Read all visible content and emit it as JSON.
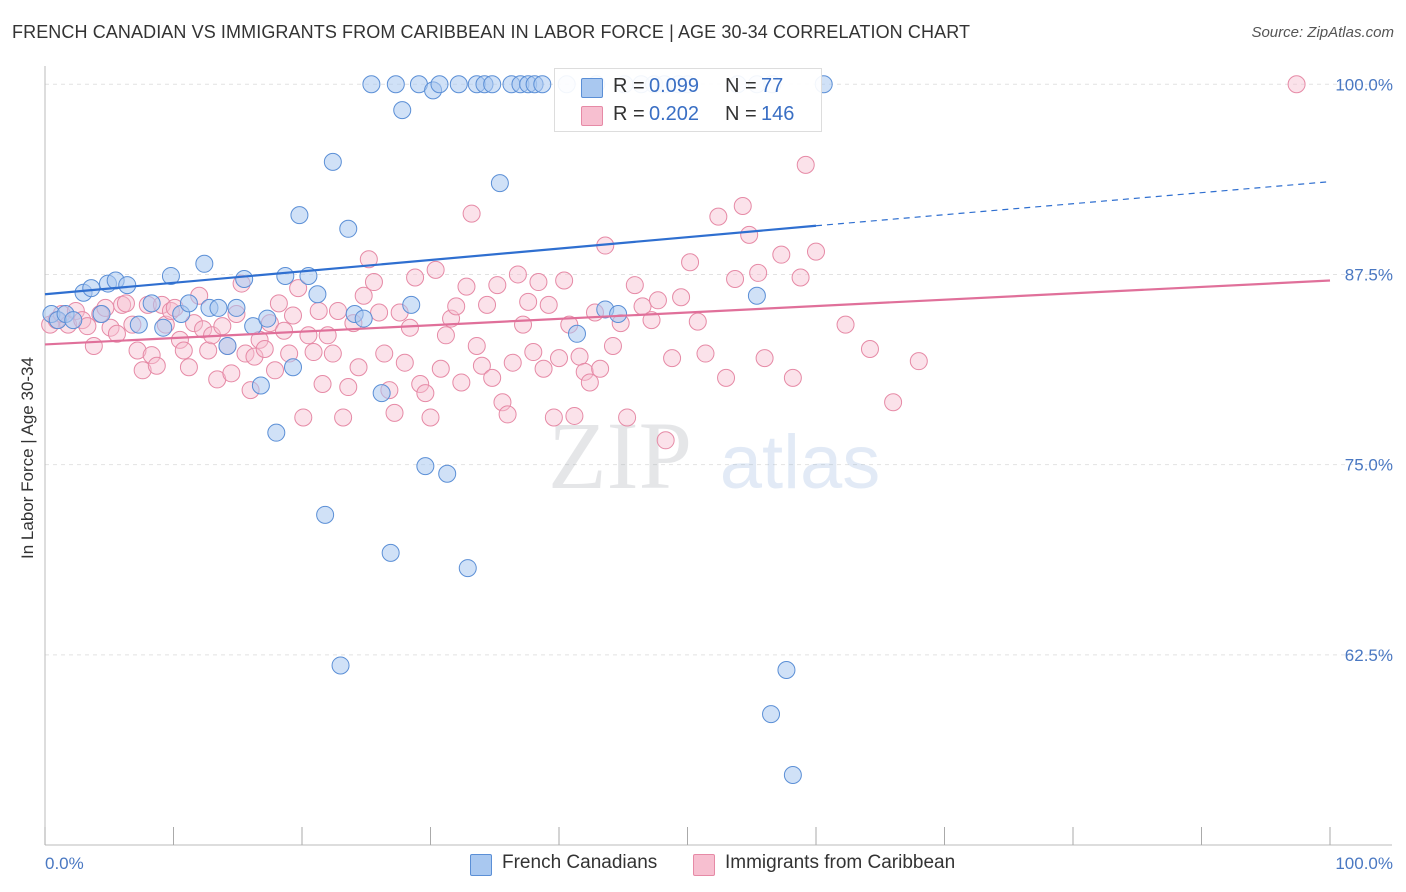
{
  "title": "FRENCH CANADIAN VS IMMIGRANTS FROM CARIBBEAN IN LABOR FORCE | AGE 30-34 CORRELATION CHART",
  "source": "Source: ZipAtlas.com",
  "watermark": {
    "zip": "ZIP",
    "atlas": "atlas"
  },
  "legend_top": {
    "rows": [
      {
        "r_label": "R = ",
        "r_value": "0.099",
        "n_label": "N = ",
        "n_value": "77"
      },
      {
        "r_label": "R = ",
        "r_value": "0.202",
        "n_label": "N = ",
        "n_value": "146"
      }
    ]
  },
  "legend_bottom": {
    "items": [
      {
        "label": "French Canadians"
      },
      {
        "label": "Immigrants from Caribbean"
      }
    ]
  },
  "colors": {
    "blue_fill": "#a9c8f0",
    "blue_stroke": "#5b8fd6",
    "blue_line": "#2f6fd0",
    "pink_fill": "#f7bfd0",
    "pink_stroke": "#e68aa6",
    "pink_line": "#e0709a",
    "tick_text": "#4a78c2",
    "grid": "#e2e2e2"
  },
  "chart_data": {
    "type": "scatter",
    "title": "FRENCH CANADIAN VS IMMIGRANTS FROM CARIBBEAN IN LABOR FORCE | AGE 30-34 CORRELATION CHART",
    "xlabel": "",
    "ylabel": "In Labor Force | Age 30-34",
    "xlim": [
      0,
      100
    ],
    "ylim": [
      50,
      101.2
    ],
    "x_tick_labels": [
      "0.0%",
      "100.0%"
    ],
    "y_ticks": [
      100.0,
      87.5,
      75.0,
      62.5
    ],
    "y_tick_labels": [
      "100.0%",
      "87.5%",
      "75.0%",
      "62.5%"
    ],
    "grid": true,
    "legend_position": "top-center",
    "series": [
      {
        "name": "French Canadians",
        "color": "#a9c8f0",
        "trend": {
          "x": [
            0,
            60,
            100
          ],
          "y": [
            86.2,
            90.7,
            93.6
          ],
          "dashed_from": 60
        },
        "points": [
          [
            0.5,
            84.9
          ],
          [
            1.0,
            84.5
          ],
          [
            1.6,
            84.9
          ],
          [
            2.2,
            84.5
          ],
          [
            3.0,
            86.3
          ],
          [
            3.6,
            86.6
          ],
          [
            4.4,
            84.9
          ],
          [
            4.9,
            86.9
          ],
          [
            5.5,
            87.1
          ],
          [
            6.4,
            86.8
          ],
          [
            7.3,
            84.2
          ],
          [
            8.3,
            85.6
          ],
          [
            9.2,
            84.0
          ],
          [
            9.8,
            87.4
          ],
          [
            10.6,
            84.9
          ],
          [
            11.2,
            85.6
          ],
          [
            12.4,
            88.2
          ],
          [
            12.8,
            85.3
          ],
          [
            13.5,
            85.3
          ],
          [
            14.2,
            82.8
          ],
          [
            14.9,
            85.3
          ],
          [
            15.5,
            87.2
          ],
          [
            16.2,
            84.1
          ],
          [
            16.8,
            80.2
          ],
          [
            17.3,
            84.6
          ],
          [
            18.0,
            77.1
          ],
          [
            18.7,
            87.4
          ],
          [
            19.3,
            81.4
          ],
          [
            19.8,
            91.4
          ],
          [
            20.5,
            87.4
          ],
          [
            21.2,
            86.2
          ],
          [
            21.8,
            71.7
          ],
          [
            22.4,
            94.9
          ],
          [
            23.0,
            61.8
          ],
          [
            23.6,
            90.5
          ],
          [
            24.1,
            84.9
          ],
          [
            24.8,
            84.6
          ],
          [
            25.4,
            100.0
          ],
          [
            26.2,
            79.7
          ],
          [
            26.9,
            69.2
          ],
          [
            27.3,
            100.0
          ],
          [
            27.8,
            98.3
          ],
          [
            28.5,
            85.5
          ],
          [
            29.1,
            100.0
          ],
          [
            29.6,
            74.9
          ],
          [
            30.2,
            99.6
          ],
          [
            30.7,
            100.0
          ],
          [
            31.3,
            74.4
          ],
          [
            32.2,
            100.0
          ],
          [
            32.9,
            68.2
          ],
          [
            33.6,
            100.0
          ],
          [
            34.2,
            100.0
          ],
          [
            34.8,
            100.0
          ],
          [
            35.4,
            93.5
          ],
          [
            36.3,
            100.0
          ],
          [
            37.0,
            100.0
          ],
          [
            37.6,
            100.0
          ],
          [
            38.1,
            100.0
          ],
          [
            38.7,
            100.0
          ],
          [
            40.6,
            100.0
          ],
          [
            41.4,
            83.6
          ],
          [
            42.9,
            100.0
          ],
          [
            43.6,
            85.2
          ],
          [
            44.6,
            84.9
          ],
          [
            45.1,
            100.0
          ],
          [
            46.4,
            100.0
          ],
          [
            47.4,
            100.0
          ],
          [
            48.2,
            100.0
          ],
          [
            49.3,
            100.0
          ],
          [
            50.0,
            100.0
          ],
          [
            53.9,
            100.0
          ],
          [
            55.4,
            100.0
          ],
          [
            56.6,
            100.0
          ],
          [
            60.6,
            100.0
          ],
          [
            56.5,
            58.6
          ],
          [
            55.4,
            86.1
          ],
          [
            57.7,
            61.5
          ],
          [
            58.2,
            54.6
          ]
        ]
      },
      {
        "name": "Immigrants from Caribbean",
        "color": "#f7bfd0",
        "trend": {
          "x": [
            0,
            100
          ],
          "y": [
            82.9,
            87.1
          ]
        },
        "points": [
          [
            0.4,
            84.2
          ],
          [
            0.9,
            84.5
          ],
          [
            1.3,
            84.9
          ],
          [
            1.8,
            84.2
          ],
          [
            2.4,
            85.1
          ],
          [
            2.9,
            84.5
          ],
          [
            3.3,
            84.1
          ],
          [
            3.8,
            82.8
          ],
          [
            4.3,
            84.9
          ],
          [
            4.7,
            85.3
          ],
          [
            5.1,
            84.0
          ],
          [
            5.6,
            83.6
          ],
          [
            6.0,
            85.5
          ],
          [
            6.3,
            85.6
          ],
          [
            6.8,
            84.2
          ],
          [
            7.2,
            82.5
          ],
          [
            7.6,
            81.2
          ],
          [
            8.0,
            85.5
          ],
          [
            8.3,
            82.2
          ],
          [
            8.7,
            81.5
          ],
          [
            9.1,
            85.5
          ],
          [
            9.4,
            84.2
          ],
          [
            9.8,
            85.1
          ],
          [
            10.1,
            85.3
          ],
          [
            10.5,
            83.2
          ],
          [
            10.8,
            82.5
          ],
          [
            11.2,
            81.4
          ],
          [
            11.6,
            84.3
          ],
          [
            12.0,
            86.1
          ],
          [
            12.3,
            83.9
          ],
          [
            12.7,
            82.5
          ],
          [
            13.0,
            83.5
          ],
          [
            13.4,
            80.6
          ],
          [
            13.8,
            84.1
          ],
          [
            14.2,
            82.8
          ],
          [
            14.5,
            81.0
          ],
          [
            14.9,
            84.9
          ],
          [
            15.3,
            86.9
          ],
          [
            15.6,
            82.3
          ],
          [
            16.0,
            79.9
          ],
          [
            16.3,
            82.1
          ],
          [
            16.7,
            83.2
          ],
          [
            17.1,
            82.6
          ],
          [
            17.5,
            84.3
          ],
          [
            17.9,
            81.2
          ],
          [
            18.2,
            85.6
          ],
          [
            18.6,
            83.8
          ],
          [
            19.0,
            82.3
          ],
          [
            19.3,
            84.8
          ],
          [
            19.7,
            86.6
          ],
          [
            20.1,
            78.1
          ],
          [
            20.5,
            83.5
          ],
          [
            20.9,
            82.4
          ],
          [
            21.3,
            85.1
          ],
          [
            21.6,
            80.3
          ],
          [
            22.0,
            83.5
          ],
          [
            22.4,
            82.3
          ],
          [
            22.8,
            85.1
          ],
          [
            23.2,
            78.1
          ],
          [
            23.6,
            80.1
          ],
          [
            24.0,
            84.3
          ],
          [
            24.4,
            81.4
          ],
          [
            24.8,
            86.1
          ],
          [
            25.2,
            88.5
          ],
          [
            25.6,
            87.0
          ],
          [
            26.0,
            85.0
          ],
          [
            26.4,
            82.3
          ],
          [
            26.8,
            79.9
          ],
          [
            27.2,
            78.4
          ],
          [
            27.6,
            85.0
          ],
          [
            28.0,
            81.7
          ],
          [
            28.4,
            84.0
          ],
          [
            28.8,
            87.3
          ],
          [
            29.2,
            80.3
          ],
          [
            29.6,
            79.7
          ],
          [
            30.0,
            78.1
          ],
          [
            30.4,
            87.8
          ],
          [
            30.8,
            81.3
          ],
          [
            31.2,
            83.5
          ],
          [
            31.6,
            84.6
          ],
          [
            32.0,
            85.4
          ],
          [
            32.4,
            80.4
          ],
          [
            32.8,
            86.7
          ],
          [
            33.2,
            91.5
          ],
          [
            33.6,
            82.8
          ],
          [
            34.0,
            81.5
          ],
          [
            34.4,
            85.5
          ],
          [
            34.8,
            80.7
          ],
          [
            35.2,
            86.8
          ],
          [
            35.6,
            79.1
          ],
          [
            36.0,
            78.3
          ],
          [
            36.4,
            81.7
          ],
          [
            36.8,
            87.5
          ],
          [
            37.2,
            84.2
          ],
          [
            37.6,
            85.7
          ],
          [
            38.0,
            82.4
          ],
          [
            38.4,
            87.0
          ],
          [
            38.8,
            81.3
          ],
          [
            39.2,
            85.5
          ],
          [
            39.6,
            78.1
          ],
          [
            40.0,
            82.0
          ],
          [
            40.4,
            87.1
          ],
          [
            40.8,
            84.2
          ],
          [
            41.2,
            78.2
          ],
          [
            41.6,
            82.1
          ],
          [
            42.0,
            81.1
          ],
          [
            42.4,
            80.4
          ],
          [
            42.8,
            85.0
          ],
          [
            43.2,
            81.3
          ],
          [
            43.6,
            89.4
          ],
          [
            44.2,
            82.8
          ],
          [
            44.8,
            84.3
          ],
          [
            45.3,
            78.1
          ],
          [
            45.9,
            86.8
          ],
          [
            46.5,
            85.4
          ],
          [
            47.2,
            84.5
          ],
          [
            47.7,
            85.8
          ],
          [
            48.3,
            76.6
          ],
          [
            48.8,
            82.0
          ],
          [
            49.5,
            86.0
          ],
          [
            50.2,
            88.3
          ],
          [
            50.8,
            84.4
          ],
          [
            51.4,
            82.3
          ],
          [
            52.4,
            91.3
          ],
          [
            53.0,
            80.7
          ],
          [
            53.7,
            87.2
          ],
          [
            54.3,
            92.0
          ],
          [
            54.8,
            90.1
          ],
          [
            55.5,
            87.6
          ],
          [
            56.0,
            82.0
          ],
          [
            57.3,
            88.8
          ],
          [
            58.2,
            80.7
          ],
          [
            58.8,
            87.3
          ],
          [
            59.2,
            94.7
          ],
          [
            60.0,
            89.0
          ],
          [
            62.3,
            84.2
          ],
          [
            64.2,
            82.6
          ],
          [
            66.0,
            79.1
          ],
          [
            68.0,
            81.8
          ],
          [
            97.4,
            100.0
          ]
        ]
      }
    ]
  }
}
